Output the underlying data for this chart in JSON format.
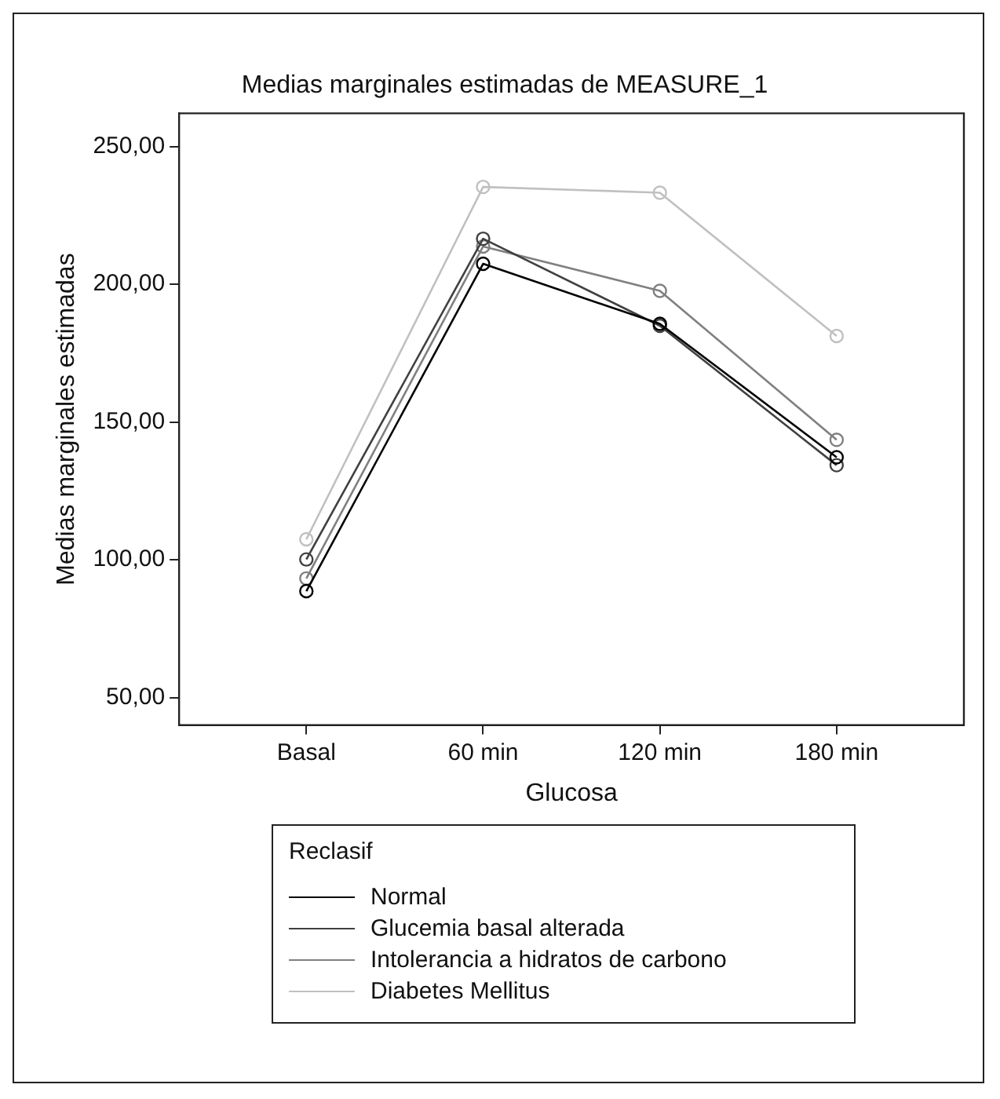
{
  "chart_data": {
    "type": "line",
    "title": "Medias marginales estimadas de MEASURE_1",
    "xlabel": "Glucosa",
    "ylabel": "Medias marginales estimadas",
    "legend_title": "Reclasif",
    "categories": [
      "Basal",
      "60 min",
      "120 min",
      "180 min"
    ],
    "series": [
      {
        "name": "Normal",
        "color": "#000000",
        "values": [
          88.6,
          207.4,
          185.6,
          137.2
        ]
      },
      {
        "name": "Glucemia basal alterada",
        "color": "#404040",
        "values": [
          100.1,
          216.5,
          184.9,
          134.3
        ]
      },
      {
        "name": "Intolerancia a hidratos de carbono",
        "color": "#808080",
        "values": [
          93.2,
          213.7,
          197.6,
          143.5
        ]
      },
      {
        "name": "Diabetes Mellitus",
        "color": "#c0c0c0",
        "values": [
          107.4,
          235.3,
          233.2,
          181.2
        ]
      }
    ],
    "ylim": [
      40,
      262
    ],
    "yticks": [
      {
        "value": 50,
        "label": "50,00"
      },
      {
        "value": 100,
        "label": "100,00"
      },
      {
        "value": 150,
        "label": "150,00"
      },
      {
        "value": 200,
        "label": "200,00"
      },
      {
        "value": 250,
        "label": "250,00"
      }
    ],
    "grid": false,
    "legend": "bottom",
    "marker": "circle",
    "line_style": "solid"
  }
}
